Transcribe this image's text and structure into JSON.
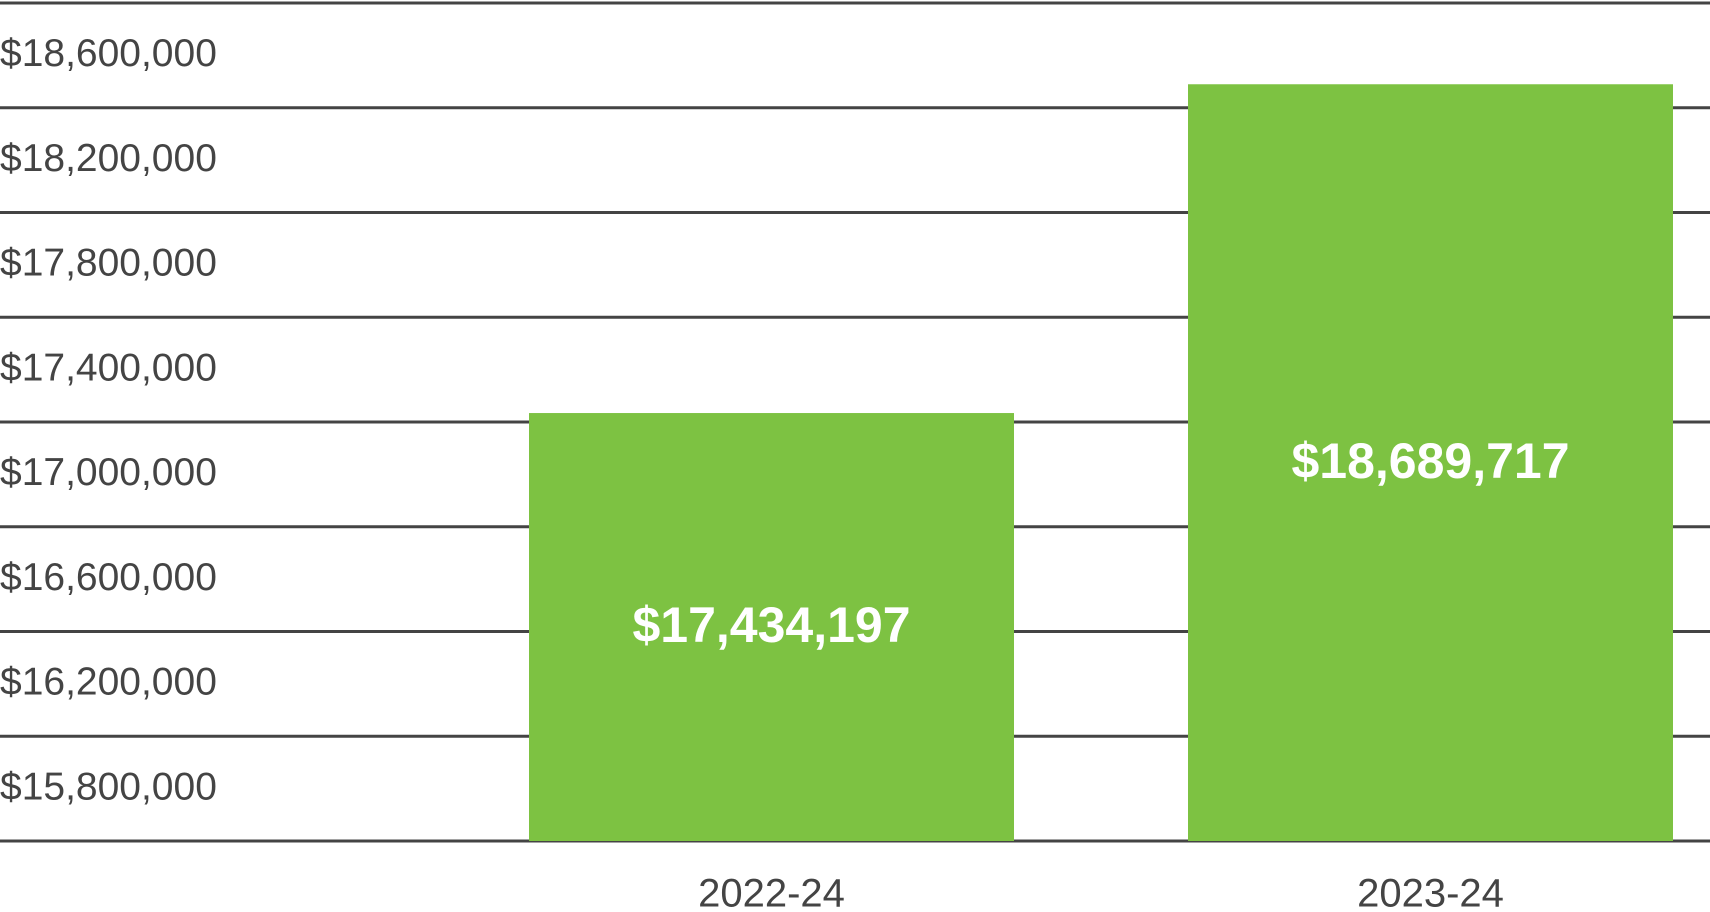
{
  "chart_data": {
    "type": "bar",
    "categories": [
      "2022-24",
      "2023-24"
    ],
    "values": [
      17434197,
      18689717
    ],
    "value_labels": [
      "$17,434,197",
      "$18,689,717"
    ],
    "color": "#7dc242",
    "ylim": [
      15800000,
      19000000
    ],
    "yticks": [
      {
        "value": 15800000,
        "label": "$15,800,000"
      },
      {
        "value": 16200000,
        "label": "$16,200,000"
      },
      {
        "value": 16600000,
        "label": "$16,600,000"
      },
      {
        "value": 17000000,
        "label": "$17,000,000"
      },
      {
        "value": 17400000,
        "label": "$17,400,000"
      },
      {
        "value": 17800000,
        "label": "$17,800,000"
      },
      {
        "value": 18200000,
        "label": "$18,200,000"
      },
      {
        "value": 18600000,
        "label": "$18,600,000"
      },
      {
        "value": 19000000,
        "label": ""
      }
    ],
    "grid": true
  }
}
